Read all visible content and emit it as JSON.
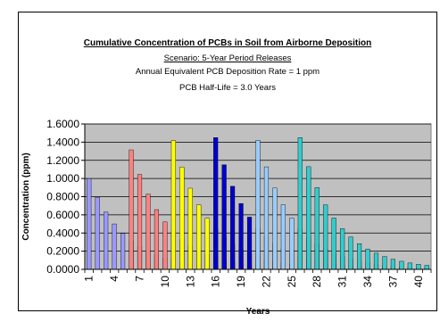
{
  "chart_data": {
    "type": "bar",
    "title": "Cumulative Concentration of PCBs in Soil from Airborne Deposition",
    "subtitles": [
      "Scenario:  5-Year Period Releases",
      "Annual Equivalent PCB Deposition Rate = 1 ppm",
      "PCB Half-Life = 3.0 Years"
    ],
    "xlabel": "Years",
    "ylabel": "Concentration (ppm)",
    "ylim": [
      0,
      1.6
    ],
    "yticks": [
      "0.0000",
      "0.2000",
      "0.4000",
      "0.6000",
      "0.8000",
      "1.0000",
      "1.2000",
      "1.4000",
      "1.6000"
    ],
    "xtick_labels": [
      "1",
      "4",
      "7",
      "10",
      "13",
      "16",
      "19",
      "22",
      "25",
      "28",
      "31",
      "34",
      "37",
      "40"
    ],
    "x": [
      1,
      2,
      3,
      4,
      5,
      6,
      7,
      8,
      9,
      10,
      11,
      12,
      13,
      14,
      15,
      16,
      17,
      18,
      19,
      20,
      21,
      22,
      23,
      24,
      25,
      26,
      27,
      28,
      29,
      30,
      31,
      32,
      33,
      34,
      35,
      36,
      37,
      38,
      39,
      40,
      41
    ],
    "grid": true,
    "plot_background": "#c0c0c0",
    "series": [
      {
        "color": "#9999ff",
        "values": [
          1.0,
          0.794,
          0.63,
          0.5,
          0.397,
          0.315,
          0.25,
          0.198,
          0.157,
          0.125,
          0.099,
          0.079,
          0.062,
          0.05,
          0.039,
          0.031,
          0.025,
          0.02,
          0.016,
          0.012,
          0.01,
          0.008,
          0.006,
          0.005,
          0.004,
          0.003,
          0.002,
          0.002,
          0.002,
          0.001,
          0.001,
          0.001,
          0.001,
          0,
          0,
          0,
          0,
          0,
          0,
          0,
          0
        ]
      },
      {
        "color": "#ff8080",
        "values": [
          0,
          0,
          0,
          0,
          0,
          1.315,
          1.044,
          0.828,
          0.657,
          0.522,
          0.414,
          0.329,
          0.261,
          0.207,
          0.164,
          0.13,
          0.103,
          0.082,
          0.065,
          0.052,
          0.041,
          0.033,
          0.026,
          0.02,
          0.016,
          0.013,
          0.01,
          0.008,
          0.006,
          0.005,
          0.004,
          0.003,
          0.003,
          0.002,
          0.002,
          0.001,
          0.001,
          0.001,
          0.001,
          0,
          0
        ]
      },
      {
        "color": "#ffff00",
        "values": [
          0,
          0,
          0,
          0,
          0,
          0,
          0,
          0,
          0,
          0,
          1.417,
          1.125,
          0.893,
          0.709,
          0.562,
          0.446,
          0.354,
          0.281,
          0.223,
          0.177,
          0.141,
          0.112,
          0.089,
          0.07,
          0.056,
          0.044,
          0.035,
          0.028,
          0.022,
          0.018,
          0.014,
          0.011,
          0.009,
          0.007,
          0.006,
          0.004,
          0.004,
          0.003,
          0.002,
          0.002,
          0.001
        ]
      },
      {
        "color": "#0000cc",
        "values": [
          0,
          0,
          0,
          0,
          0,
          0,
          0,
          0,
          0,
          0,
          0,
          0,
          0,
          0,
          0,
          1.45,
          1.151,
          0.914,
          0.725,
          0.575,
          0.457,
          0.362,
          0.288,
          0.228,
          0.181,
          0.144,
          0.114,
          0.091,
          0.072,
          0.057,
          0.045,
          0.036,
          0.029,
          0.023,
          0.018,
          0.014,
          0.011,
          0.009,
          0.007,
          0.006,
          0.005
        ]
      },
      {
        "color": "#99ccff",
        "values": [
          0,
          0,
          0,
          0,
          0,
          0,
          0,
          0,
          0,
          0,
          0,
          0,
          0,
          0,
          0,
          0,
          0,
          0,
          0,
          0,
          1.42,
          1.128,
          0.895,
          0.711,
          0.564,
          0.448,
          0.355,
          0.282,
          0.224,
          0.178,
          0.141,
          0.112,
          0.089,
          0.071,
          0.056,
          0.044,
          0.035,
          0.028,
          0.022,
          0.018,
          0.014
        ]
      },
      {
        "color": "#33cccc",
        "values": [
          0,
          0,
          0,
          0,
          0,
          0,
          0,
          0,
          0,
          0,
          0,
          0,
          0,
          0,
          0,
          0,
          0,
          0,
          0,
          0,
          0,
          0,
          0,
          0,
          0,
          1.45,
          1.13,
          0.9,
          0.71,
          0.565,
          0.448,
          0.356,
          0.282,
          0.224,
          0.178,
          0.141,
          0.112,
          0.089,
          0.07,
          0.056,
          0.044
        ]
      }
    ]
  }
}
